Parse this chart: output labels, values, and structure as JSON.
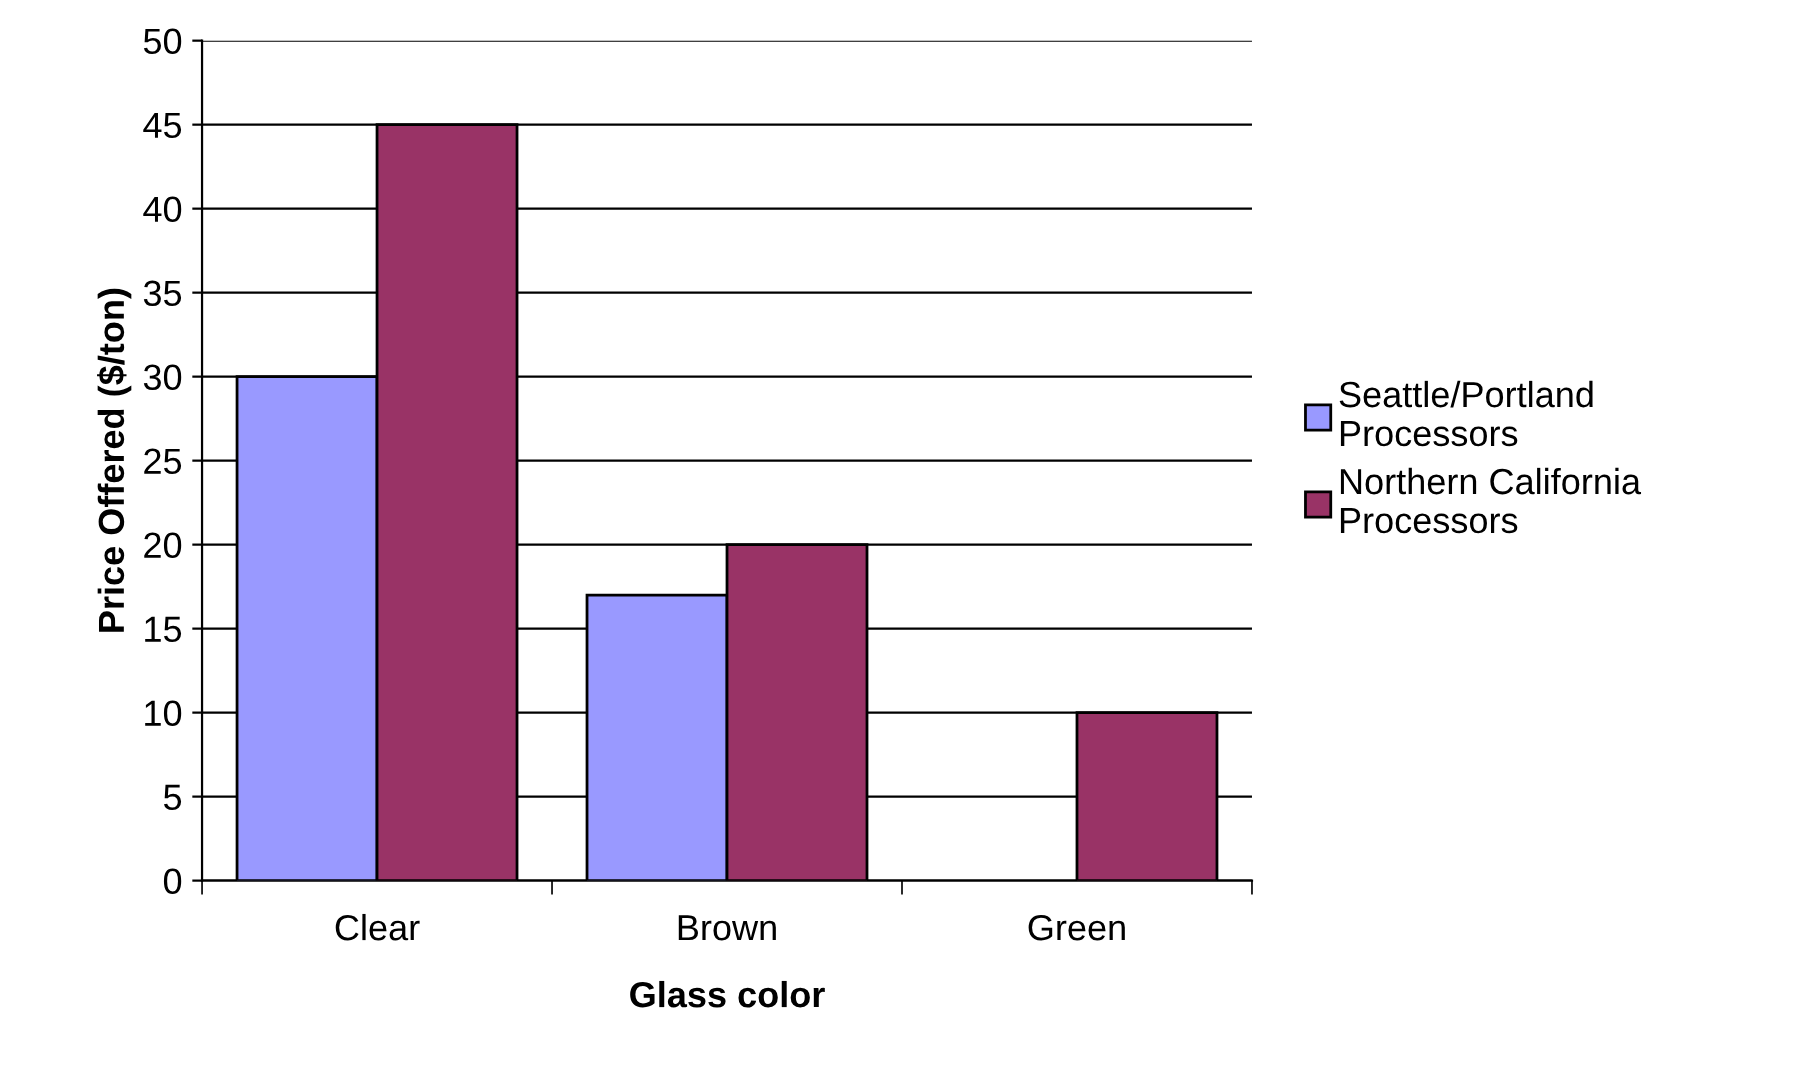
{
  "chart_data": {
    "type": "bar",
    "xlabel": "Glass color",
    "ylabel": "Price Offered ($/ton)",
    "categories": [
      "Clear",
      "Brown",
      "Green"
    ],
    "series": [
      {
        "name": "Seattle/Portland\nProcessors",
        "color": "#9999ff",
        "values": [
          30,
          17,
          null
        ]
      },
      {
        "name": "Northern California\nProcessors",
        "color": "#993366",
        "values": [
          45,
          20,
          10
        ]
      }
    ],
    "ylim": [
      0,
      50
    ],
    "yticks": [
      0,
      5,
      10,
      15,
      20,
      25,
      30,
      35,
      40,
      45,
      50
    ],
    "grid": "y",
    "legend": "right"
  }
}
